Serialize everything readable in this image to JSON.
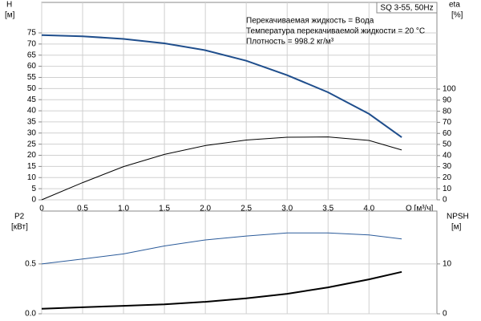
{
  "chart_data": [
    {
      "type": "line",
      "title": "SQ 3-55, 50Hz",
      "annotations": [
        "Перекачиваемая жидкость = Вода",
        "Температура перекачиваемой жидкости = 20 °C",
        "Плотность = 998.2 кг/м³"
      ],
      "ylabel": "H",
      "yunit": "[м]",
      "y2label": "eta",
      "y2unit": "[%]",
      "xlabel": "Q [м³/ч]",
      "x": [
        0,
        0.5,
        1.0,
        1.5,
        2.0,
        2.5,
        3.0,
        3.5,
        4.0,
        4.4
      ],
      "xlim": [
        0,
        4.83
      ],
      "xticks": [
        0,
        {
          "value": 0.5,
          "label": "0,5"
        },
        {
          "value": 1.0,
          "label": "1,0"
        },
        {
          "value": 1.5,
          "label": "1,5"
        },
        {
          "value": 2.0,
          "label": "2,0"
        },
        {
          "value": 2.5,
          "label": "2,5"
        },
        {
          "value": 3.0,
          "label": "3,0"
        },
        {
          "value": 3.5,
          "label": "3,5"
        },
        {
          "value": 4.0,
          "label": "4,0"
        }
      ],
      "ylim": [
        0,
        88.7
      ],
      "yticks": [
        0,
        5,
        10,
        15,
        20,
        25,
        30,
        35,
        40,
        45,
        50,
        55,
        60,
        65,
        70,
        75
      ],
      "y2lim": [
        0,
        178.3
      ],
      "y2ticks": [
        0,
        10,
        20,
        30,
        40,
        50,
        60,
        70,
        80,
        90,
        100
      ],
      "grid": true,
      "series": [
        {
          "color": "#1f4e8c",
          "linewidth": 2,
          "axis": "y",
          "values": [
            74,
            73.5,
            72.3,
            70.3,
            67.2,
            62.5,
            56,
            48.3,
            38.6,
            28.1
          ]
        },
        {
          "color": "#000000",
          "linewidth": 1,
          "axis": "y2",
          "values": [
            0,
            15.5,
            30,
            41,
            49,
            54,
            56.5,
            56.8,
            53.6,
            45
          ]
        }
      ]
    },
    {
      "type": "line",
      "ylabel": "P2",
      "yunit": "[кВт]",
      "y2label": "NPSH",
      "y2unit": "[м]",
      "x": [
        0,
        0.5,
        1.0,
        1.5,
        2.0,
        2.5,
        3.0,
        3.5,
        4.0,
        4.4
      ],
      "xlim": [
        0,
        4.83
      ],
      "xticks": [
        0,
        0.5,
        1.0,
        1.5,
        2.0,
        2.5,
        3.0,
        3.5,
        4.0
      ],
      "ylim": [
        0,
        1.03
      ],
      "yticks": [
        {
          "value": 0,
          "label": "0.0"
        },
        0.5
      ],
      "y2lim": [
        0,
        20.6
      ],
      "y2ticks": [
        0,
        10
      ],
      "grid": true,
      "series": [
        {
          "color": "#2b5b9a",
          "linewidth": 1,
          "axis": "y",
          "values": [
            0.5,
            0.55,
            0.6,
            0.68,
            0.74,
            0.78,
            0.81,
            0.81,
            0.79,
            0.75
          ]
        },
        {
          "color": "#000000",
          "linewidth": 2,
          "axis": "y2",
          "values": [
            1.0,
            1.3,
            1.6,
            1.9,
            2.4,
            3.1,
            4.0,
            5.3,
            6.9,
            8.4
          ]
        }
      ]
    }
  ]
}
